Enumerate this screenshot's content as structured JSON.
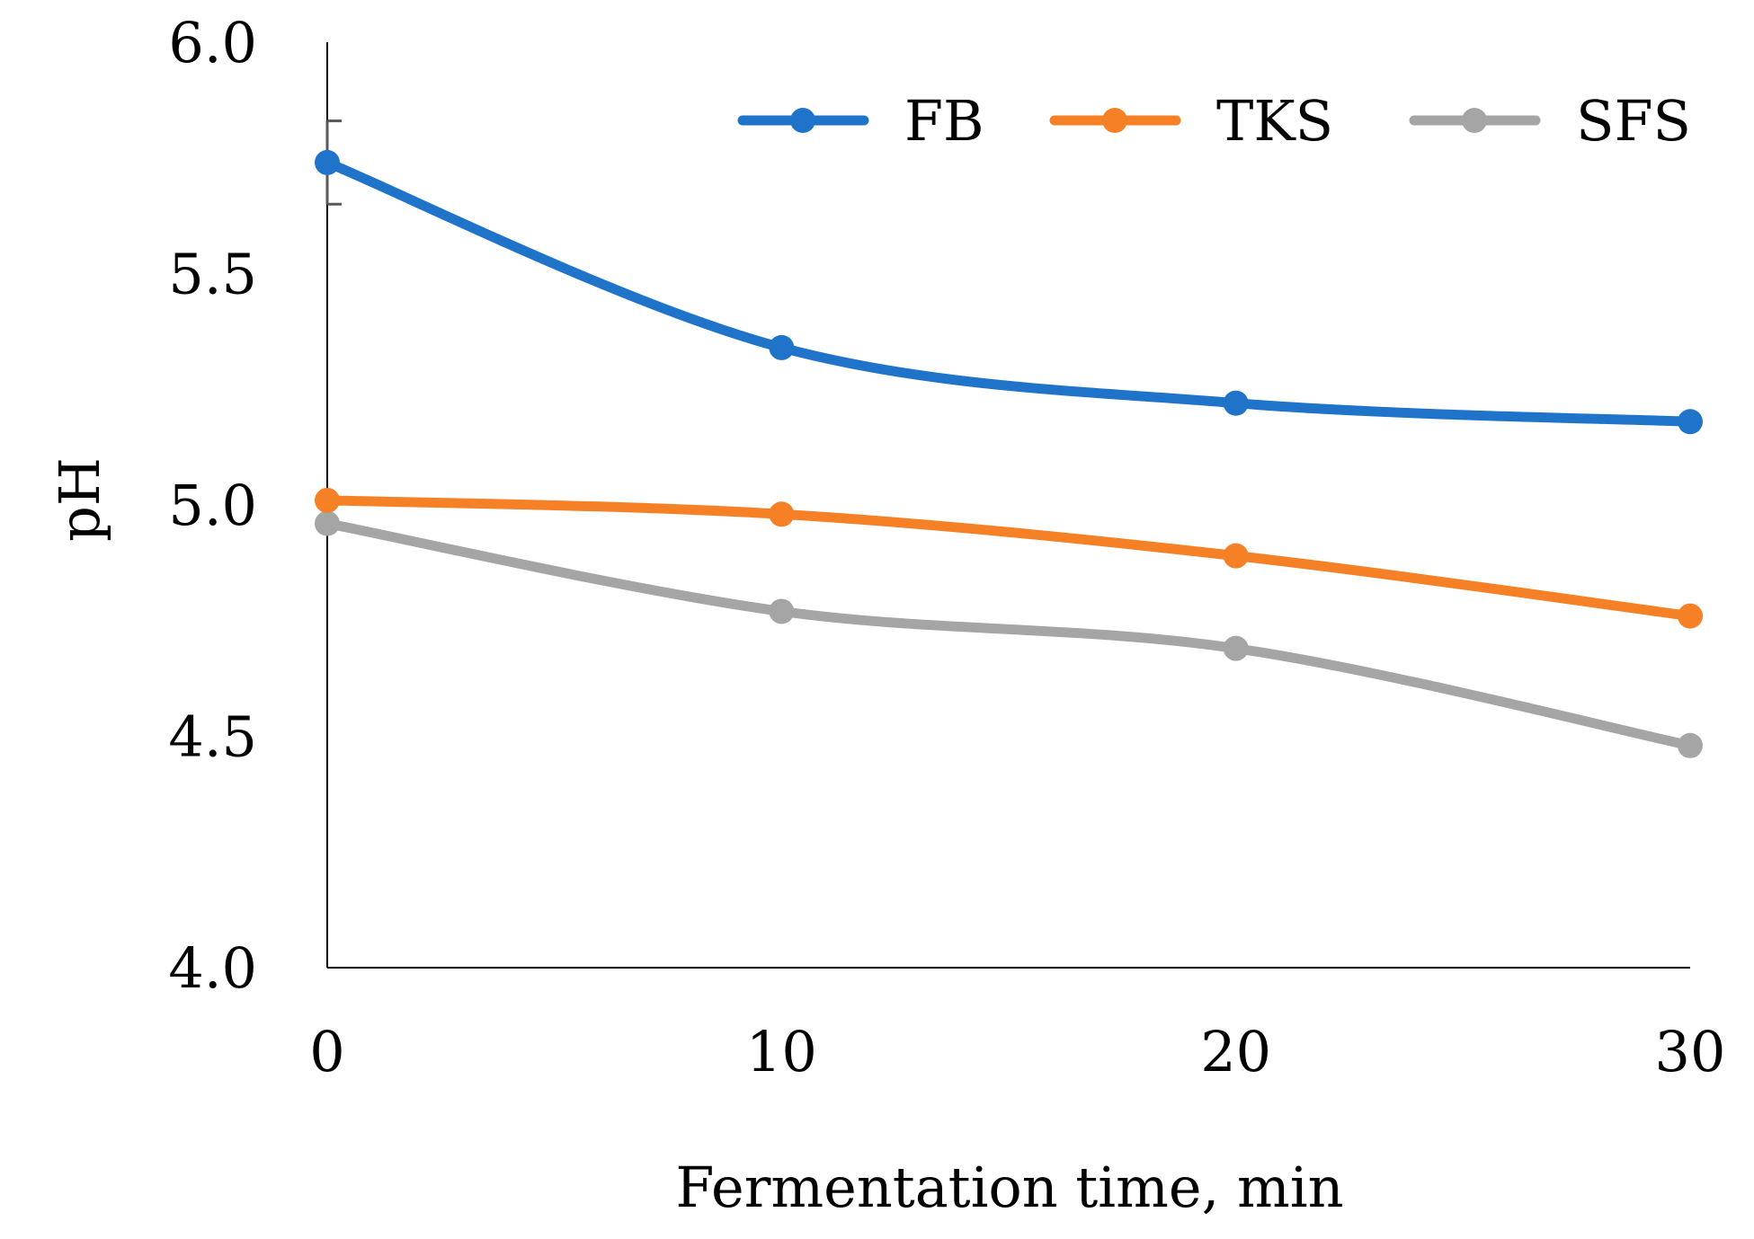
{
  "chart_data": {
    "type": "line",
    "title": "",
    "xlabel": "Fermentation time, min",
    "ylabel": "pH",
    "x": [
      0,
      10,
      20,
      30
    ],
    "x_tick_labels": [
      "0",
      "10",
      "20",
      "30"
    ],
    "y_tick_values": [
      4.0,
      4.5,
      5.0,
      5.5,
      6.0
    ],
    "y_tick_labels": [
      "4.0",
      "4.5",
      "5.0",
      "5.5",
      "6.0"
    ],
    "xlim": [
      0,
      30
    ],
    "ylim": [
      4.0,
      6.0
    ],
    "grid": false,
    "legend_position": "top-right",
    "series": [
      {
        "name": "FB",
        "color": "#1f74c9",
        "values": [
          5.74,
          5.34,
          5.22,
          5.18
        ],
        "error": [
          0.09,
          0.0,
          0.0,
          0.0
        ]
      },
      {
        "name": "TKS",
        "color": "#f58025",
        "values": [
          5.01,
          4.98,
          4.89,
          4.76
        ],
        "error": [
          0.0,
          0.0,
          0.0,
          0.0
        ]
      },
      {
        "name": "SFS",
        "color": "#a5a5a5",
        "values": [
          4.96,
          4.77,
          4.69,
          4.48
        ],
        "error": [
          0.0,
          0.0,
          0.0,
          0.0
        ]
      }
    ]
  }
}
